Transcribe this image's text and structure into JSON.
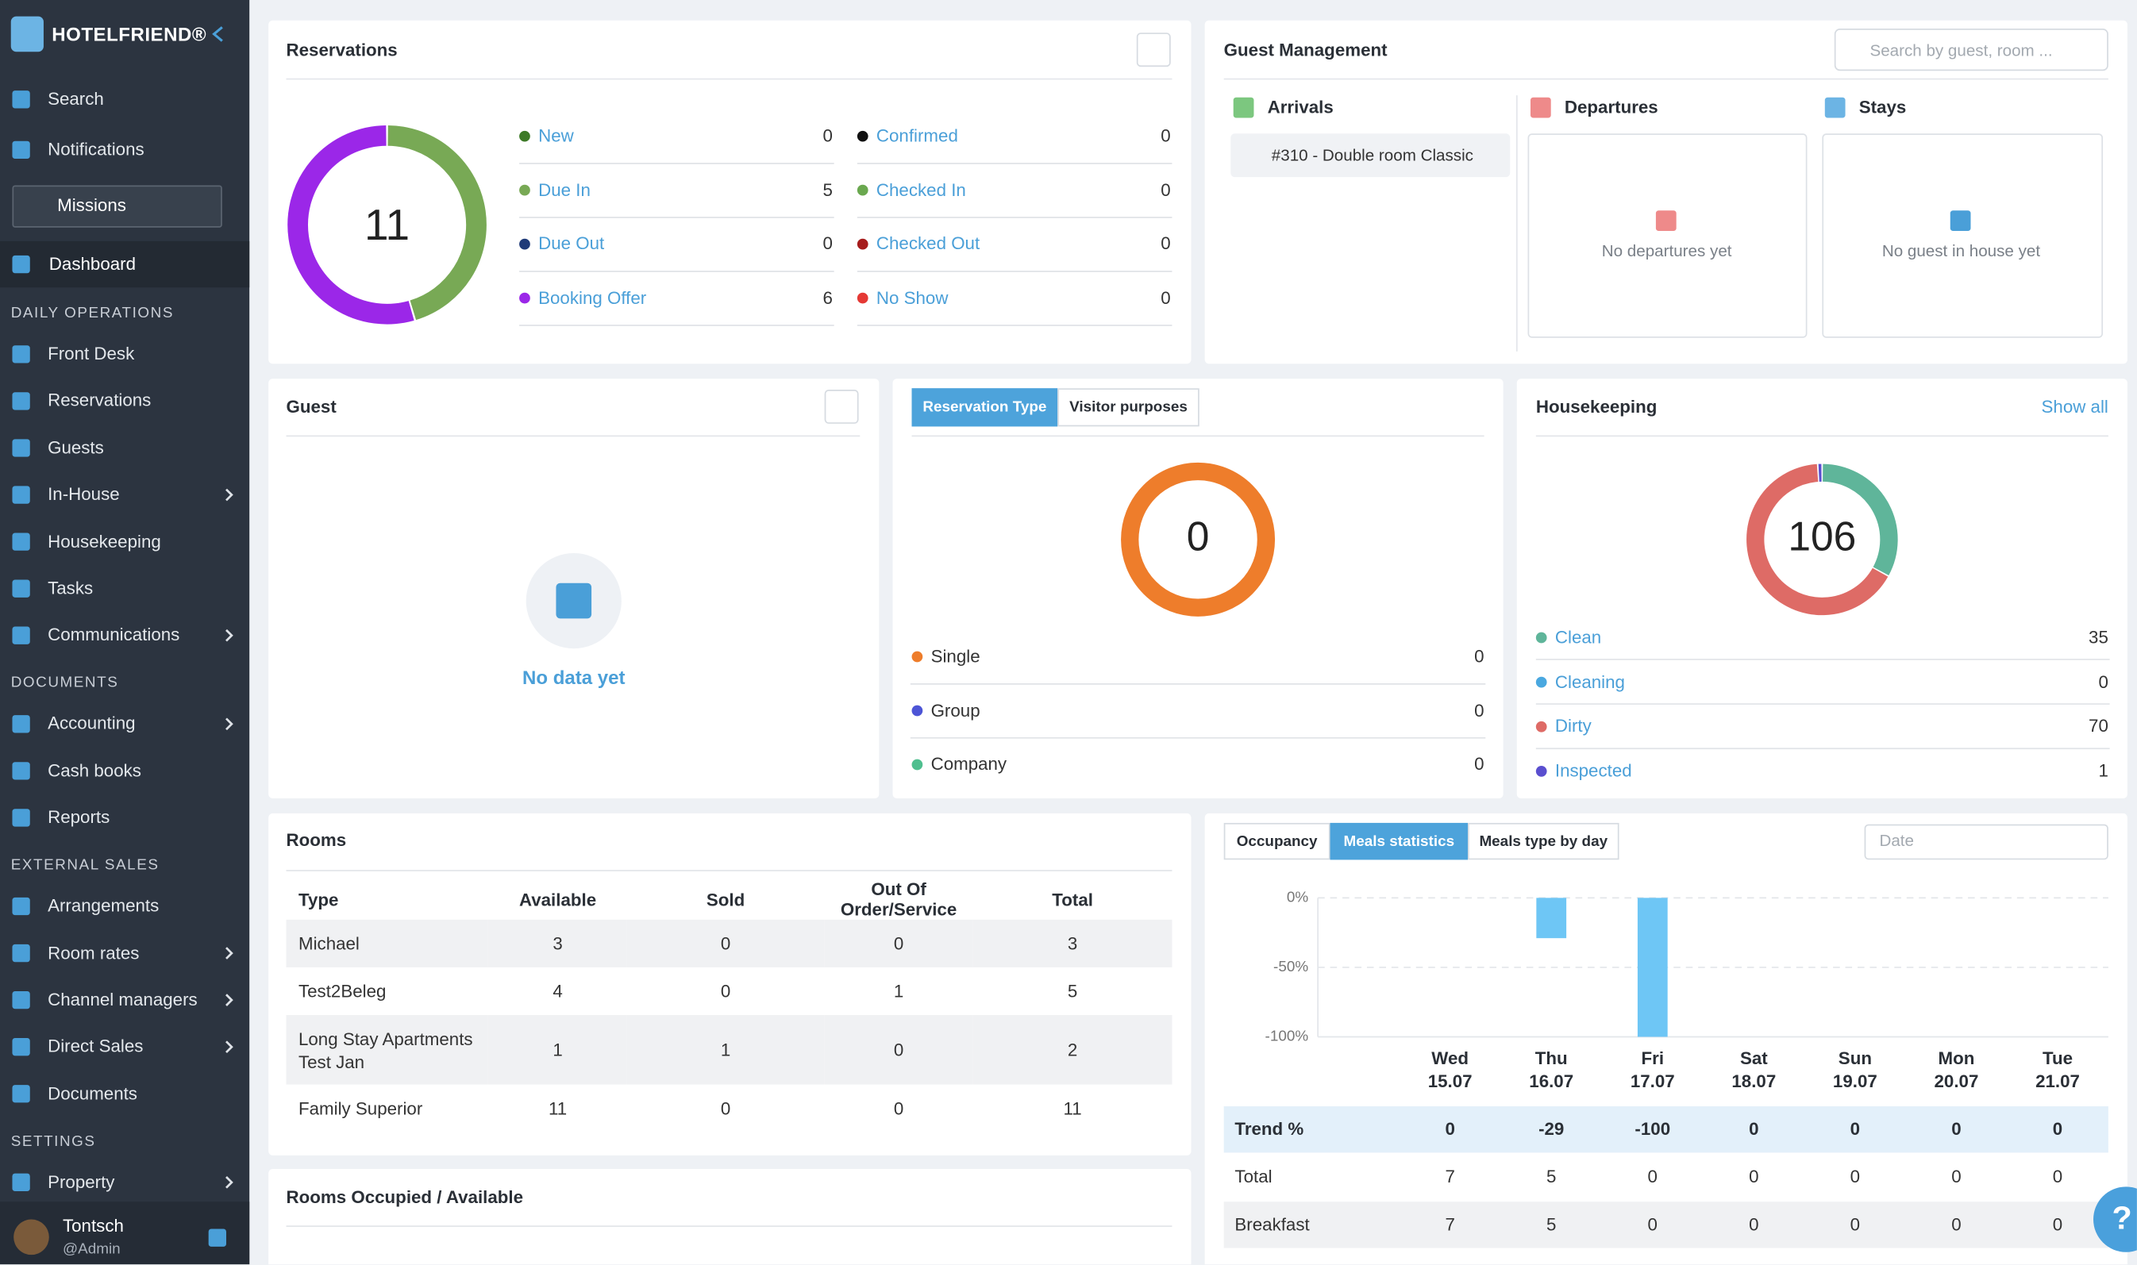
{
  "sidebar": {
    "brand": "HOTELFRIEND®",
    "top_items": [
      {
        "label": "Search"
      },
      {
        "label": "Notifications"
      }
    ],
    "missions": "Missions",
    "dashboard": "Dashboard",
    "sections": [
      {
        "title": "DAILY OPERATIONS",
        "items": [
          {
            "label": "Front Desk"
          },
          {
            "label": "Reservations"
          },
          {
            "label": "Guests"
          },
          {
            "label": "In-House",
            "submenu": true
          },
          {
            "label": "Housekeeping"
          },
          {
            "label": "Tasks"
          },
          {
            "label": "Communications",
            "submenu": true
          }
        ]
      },
      {
        "title": "DOCUMENTS",
        "items": [
          {
            "label": "Accounting",
            "submenu": true
          },
          {
            "label": "Cash books"
          },
          {
            "label": "Reports"
          }
        ]
      },
      {
        "title": "EXTERNAL SALES",
        "items": [
          {
            "label": "Arrangements"
          },
          {
            "label": "Room rates",
            "submenu": true
          },
          {
            "label": "Channel managers",
            "submenu": true
          },
          {
            "label": "Direct Sales",
            "submenu": true
          },
          {
            "label": "Documents"
          }
        ]
      },
      {
        "title": "SETTINGS",
        "items": [
          {
            "label": "Property",
            "submenu": true
          }
        ]
      }
    ],
    "user": {
      "name": "Tontsch",
      "role": "@Admin"
    }
  },
  "reservations": {
    "title": "Reservations",
    "total": 11,
    "statuses": [
      {
        "name": "New",
        "value": 0,
        "color": "#3d7a27"
      },
      {
        "name": "Due In",
        "value": 5,
        "color": "#78a955"
      },
      {
        "name": "Due Out",
        "value": 0,
        "color": "#1f3a78"
      },
      {
        "name": "Booking Offer",
        "value": 6,
        "color": "#9b27e8"
      },
      {
        "name": "Confirmed",
        "value": 0,
        "color": "#111111"
      },
      {
        "name": "Checked In",
        "value": 0,
        "color": "#6aa84f"
      },
      {
        "name": "Checked Out",
        "value": 0,
        "color": "#a61c1c"
      },
      {
        "name": "No Show",
        "value": 0,
        "color": "#e53935"
      }
    ]
  },
  "guest_management": {
    "title": "Guest Management",
    "search_placeholder": "Search by guest, room ...",
    "arrivals": {
      "title": "Arrivals",
      "items": [
        "#310 - Double room Classic"
      ]
    },
    "departures": {
      "title": "Departures",
      "empty": "No departures yet"
    },
    "stays": {
      "title": "Stays",
      "empty": "No guest in house yet"
    }
  },
  "guest": {
    "title": "Guest",
    "empty": "No data yet"
  },
  "reservation_type": {
    "tabs": [
      "Reservation Type",
      "Visitor purposes"
    ],
    "active_tab": 0,
    "total": 0,
    "ring_color": "#ee7d2b",
    "types": [
      {
        "name": "Single",
        "value": 0,
        "color": "#ee7d2b"
      },
      {
        "name": "Group",
        "value": 0,
        "color": "#4d55d6"
      },
      {
        "name": "Company",
        "value": 0,
        "color": "#4fbf8f"
      }
    ]
  },
  "housekeeping": {
    "title": "Housekeeping",
    "link": "Show all",
    "total": 106,
    "statuses": [
      {
        "name": "Clean",
        "value": 35,
        "color": "#5fb59a"
      },
      {
        "name": "Cleaning",
        "value": 0,
        "color": "#4aa8e0"
      },
      {
        "name": "Dirty",
        "value": 70,
        "color": "#de6b66"
      },
      {
        "name": "Inspected",
        "value": 1,
        "color": "#5a4fcf"
      }
    ]
  },
  "rooms": {
    "title": "Rooms",
    "columns": [
      "Type",
      "Available",
      "Sold",
      "Out Of Order/Service",
      "Total"
    ],
    "rows": [
      [
        "Michael",
        3,
        0,
        0,
        3
      ],
      [
        "Test2Beleg",
        4,
        0,
        1,
        5
      ],
      [
        "Long Stay Apartments Test Jan",
        1,
        1,
        0,
        2
      ],
      [
        "Family Superior",
        11,
        0,
        0,
        11
      ]
    ]
  },
  "rooms_occupied": {
    "title": "Rooms Occupied / Available"
  },
  "meals": {
    "tabs": [
      "Occupancy",
      "Meals statistics",
      "Meals type by day"
    ],
    "active_tab": 1,
    "date_placeholder": "Date",
    "chart": {
      "type": "bar",
      "ylim": [
        -100,
        0
      ],
      "yticks": [
        {
          "value": 0,
          "label": "0%"
        },
        {
          "value": -50,
          "label": "-50%"
        },
        {
          "value": -100,
          "label": "-100%"
        }
      ],
      "color": "#6ec6f5",
      "grid": true
    },
    "days": [
      "Wed",
      "Thu",
      "Fri",
      "Sat",
      "Sun",
      "Mon",
      "Tue"
    ],
    "dates": [
      "15.07",
      "16.07",
      "17.07",
      "18.07",
      "19.07",
      "20.07",
      "21.07"
    ],
    "rows": [
      {
        "label": "Trend %",
        "values": [
          0,
          -29,
          -100,
          0,
          0,
          0,
          0
        ]
      },
      {
        "label": "Total",
        "values": [
          7,
          5,
          0,
          0,
          0,
          0,
          0
        ]
      },
      {
        "label": "Breakfast",
        "values": [
          7,
          5,
          0,
          0,
          0,
          0,
          0
        ]
      }
    ]
  },
  "help": "?"
}
